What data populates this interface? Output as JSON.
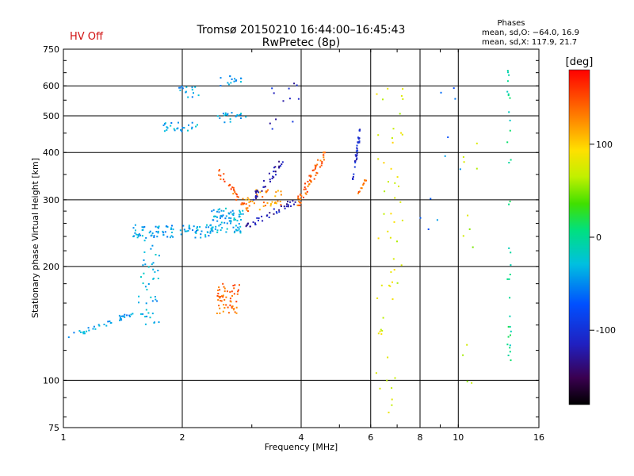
{
  "title": "Tromsø 20150210 16:44:00–16:45:43",
  "subtitle": "RwPretec (8p)",
  "status_label": "HV Off",
  "status_color": "#d01010",
  "phase_info": {
    "heading": "Phases",
    "line_o": "mean, sd,O: −64.0, 16.9",
    "line_x": "mean, sd,X: 117.9, 21.7"
  },
  "chart_data": {
    "type": "scatter",
    "xlabel": "Frequency [MHz]",
    "ylabel": "Stationary phase Virtual Height [km]",
    "x_scale": "log",
    "y_scale": "log",
    "xlim": [
      1,
      16
    ],
    "ylim": [
      75,
      750
    ],
    "x_ticks": [
      1,
      2,
      4,
      6,
      8,
      10,
      16
    ],
    "x_tick_labels": [
      "1",
      "2",
      "4",
      "6",
      "8",
      "10",
      "16"
    ],
    "y_ticks": [
      75,
      100,
      200,
      300,
      400,
      500,
      600,
      750
    ],
    "y_tick_labels": [
      "75",
      "100",
      "200",
      "300",
      "400",
      "500",
      "600",
      "750"
    ],
    "grid": true,
    "colorbar": {
      "label": "[deg]",
      "range": [
        -180,
        180
      ],
      "ticks": [
        100,
        0,
        -100
      ],
      "tick_labels": [
        "100",
        "0",
        "-100"
      ]
    },
    "clusters": [
      {
        "name": "low-F-trace",
        "f": [
          1.03,
          1.5
        ],
        "h": [
          130,
          150
        ],
        "slope": 0.8,
        "n": 38,
        "phase": -40
      },
      {
        "name": "vertical-spread-1.6",
        "f": [
          1.55,
          1.75
        ],
        "h": [
          140,
          240
        ],
        "slope": 0,
        "n": 45,
        "phase": -38
      },
      {
        "name": "Es-ordinary",
        "f": [
          1.5,
          2.4
        ],
        "h": [
          238,
          258
        ],
        "slope": 0,
        "n": 90,
        "phase": -40
      },
      {
        "name": "F-trace-o",
        "f": [
          2.35,
          2.85
        ],
        "h": [
          245,
          285
        ],
        "slope": 0,
        "n": 80,
        "phase": -38
      },
      {
        "name": "E-x-mode",
        "f": [
          2.45,
          2.8
        ],
        "h": [
          150,
          180
        ],
        "slope": 0,
        "n": 55,
        "phase": 140
      },
      {
        "name": "F-x-trace-1",
        "f": [
          2.45,
          2.95
        ],
        "h": [
          280,
          360
        ],
        "slope": -1,
        "n": 35,
        "phase": 145
      },
      {
        "name": "F-x-trace-2",
        "f": [
          2.9,
          3.6
        ],
        "h": [
          280,
          320
        ],
        "slope": 0,
        "n": 40,
        "phase": 125
      },
      {
        "name": "F-o-trace-3",
        "f": [
          2.9,
          3.9
        ],
        "h": [
          255,
          300
        ],
        "slope": 0.5,
        "n": 40,
        "phase": -120
      },
      {
        "name": "high-echo-1.8",
        "f": [
          1.75,
          2.2
        ],
        "h": [
          455,
          480
        ],
        "slope": 0,
        "n": 25,
        "phase": -40
      },
      {
        "name": "high-echo-2.0",
        "f": [
          1.95,
          2.2
        ],
        "h": [
          560,
          600
        ],
        "slope": 0,
        "n": 15,
        "phase": -40
      },
      {
        "name": "high-echo-2.5",
        "f": [
          2.45,
          2.9
        ],
        "h": [
          480,
          510
        ],
        "slope": 0,
        "n": 20,
        "phase": -40
      },
      {
        "name": "high-echo-2.6",
        "f": [
          2.5,
          2.9
        ],
        "h": [
          600,
          640
        ],
        "slope": 0,
        "n": 15,
        "phase": -45
      },
      {
        "name": "F-o-rising-3",
        "f": [
          3.0,
          3.6
        ],
        "h": [
          300,
          380
        ],
        "slope": 1,
        "n": 35,
        "phase": -120
      },
      {
        "name": "F-x-rising-4",
        "f": [
          3.9,
          4.6
        ],
        "h": [
          290,
          400
        ],
        "slope": 1,
        "n": 60,
        "phase": 145
      },
      {
        "name": "F-o-cusp-5.5",
        "f": [
          5.4,
          5.65
        ],
        "h": [
          340,
          460
        ],
        "slope": 1,
        "n": 35,
        "phase": -110
      },
      {
        "name": "F-x-cusp-5.6",
        "f": [
          5.55,
          5.85
        ],
        "h": [
          310,
          340
        ],
        "slope": 1,
        "n": 12,
        "phase": 140
      },
      {
        "name": "scatter-3.5",
        "f": [
          3.3,
          4.3
        ],
        "h": [
          450,
          620
        ],
        "slope": 0,
        "n": 12,
        "phase": -110
      },
      {
        "name": "scatter-6.4",
        "f": [
          6.2,
          7.0
        ],
        "h": [
          80,
          600
        ],
        "slope": 0,
        "n": 45,
        "phase": 80
      },
      {
        "name": "scatter-7.2",
        "f": [
          7.0,
          7.3
        ],
        "h": [
          180,
          600
        ],
        "slope": 0,
        "n": 12,
        "phase": 70
      },
      {
        "name": "scatter-8-10",
        "f": [
          8.0,
          10.5
        ],
        "h": [
          250,
          600
        ],
        "slope": 0,
        "n": 10,
        "phase": -60
      },
      {
        "name": "scatter-10.5",
        "f": [
          10.2,
          11.2
        ],
        "h": [
          80,
          500
        ],
        "slope": 0,
        "n": 12,
        "phase": 60
      },
      {
        "name": "scatter-13.5",
        "f": [
          13.3,
          13.6
        ],
        "h": [
          110,
          700
        ],
        "slope": 0,
        "n": 35,
        "phase": 0
      }
    ]
  }
}
